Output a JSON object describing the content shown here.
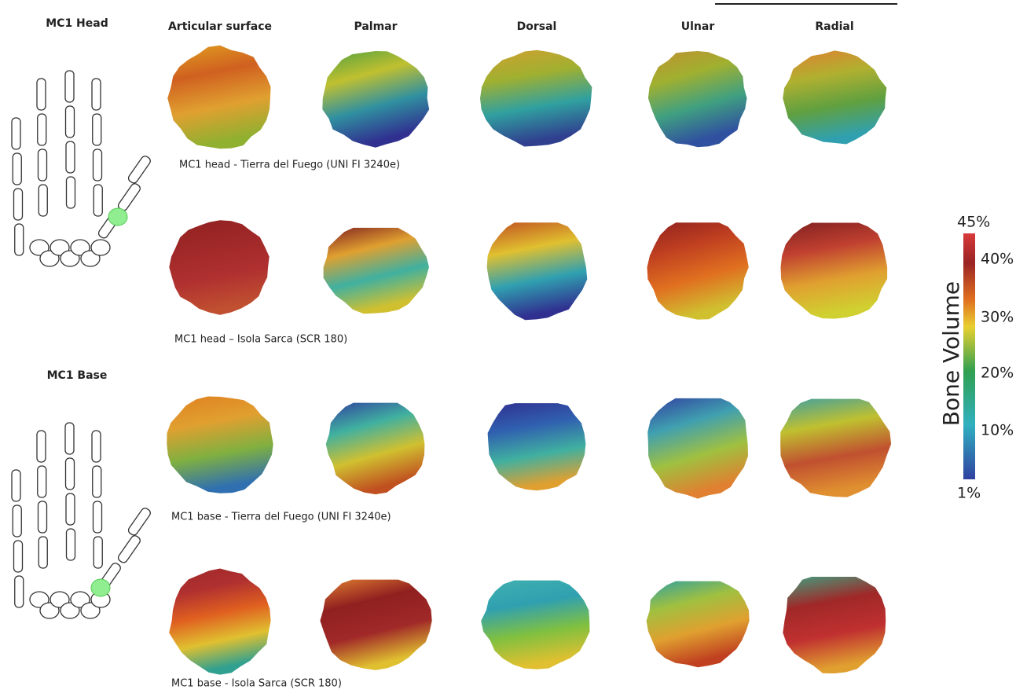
{
  "sections": [
    {
      "title": "MC1 Head"
    },
    {
      "title": "MC1 Base"
    }
  ],
  "column_headers": [
    "Articular surface",
    "Palmar",
    "Dorsal",
    "Ulnar",
    "Radial"
  ],
  "rows": [
    {
      "caption": "MC1 head - Tierra del Fuego (UNI FI 3240e)"
    },
    {
      "caption": "MC1 head – Isola Sarca (SCR 180)"
    },
    {
      "caption": "MC1 base - Tierra del Fuego (UNI FI 3240e)"
    },
    {
      "caption": "MC1 base - Isola Sarca (SCR 180)"
    }
  ],
  "colorbar": {
    "title": "Bone Volume",
    "labels": [
      "45%",
      "40%",
      "30%",
      "20%",
      "10%",
      "1%"
    ]
  }
}
